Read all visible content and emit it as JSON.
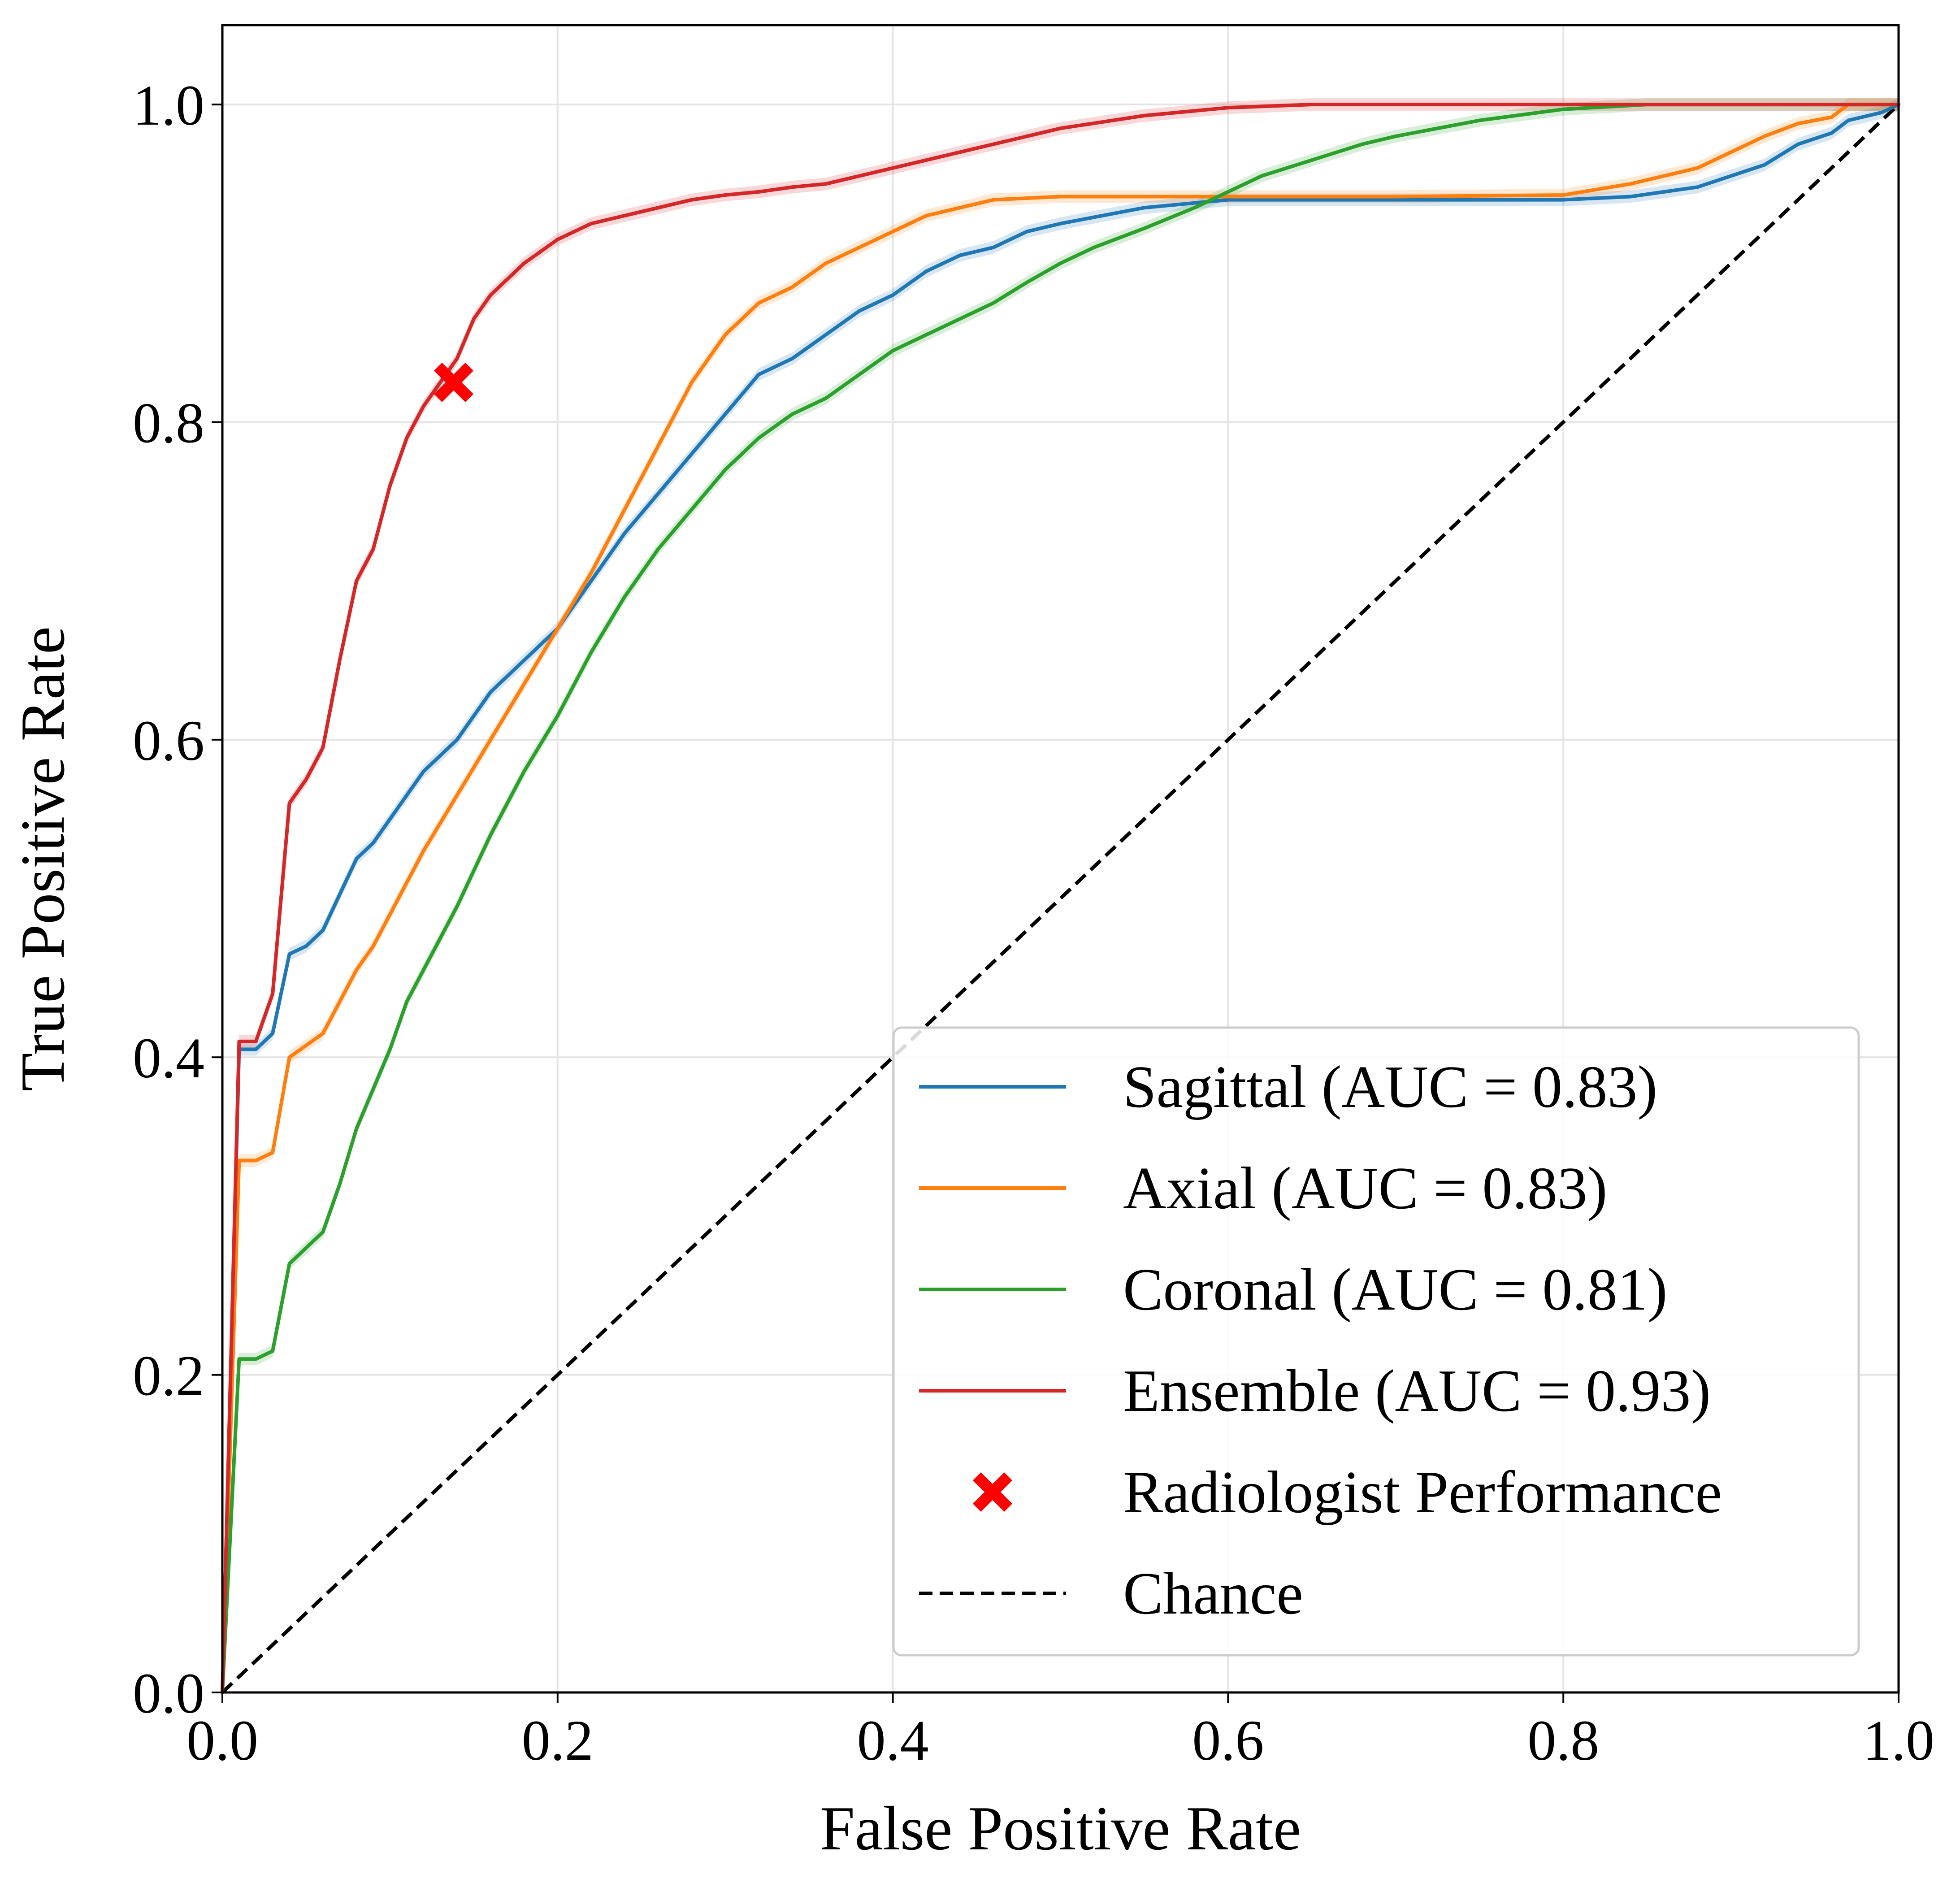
{
  "chart_data": {
    "type": "line",
    "title": "",
    "xlabel": "False Positive Rate",
    "ylabel": "True Positive Rate",
    "xlim": [
      0.0,
      1.0
    ],
    "ylim": [
      0.0,
      1.05
    ],
    "xticks": [
      0.0,
      0.2,
      0.4,
      0.6,
      0.8,
      1.0
    ],
    "yticks": [
      0.0,
      0.2,
      0.4,
      0.6,
      0.8,
      1.0
    ],
    "xtick_labels": [
      "0.0",
      "0.2",
      "0.4",
      "0.6",
      "0.8",
      "1.0"
    ],
    "ytick_labels": [
      "0.0",
      "0.2",
      "0.4",
      "0.6",
      "0.8",
      "1.0"
    ],
    "grid": true,
    "legend_position": "lower-right",
    "series": [
      {
        "name": "Sagittal",
        "label": "Sagittal (AUC = 0.83)",
        "color": "#1f77b4",
        "x": [
          0.0,
          0.01,
          0.02,
          0.03,
          0.04,
          0.05,
          0.06,
          0.08,
          0.09,
          0.1,
          0.12,
          0.14,
          0.16,
          0.18,
          0.2,
          0.22,
          0.24,
          0.26,
          0.28,
          0.3,
          0.32,
          0.34,
          0.36,
          0.38,
          0.4,
          0.42,
          0.44,
          0.46,
          0.48,
          0.5,
          0.55,
          0.6,
          0.7,
          0.8,
          0.84,
          0.88,
          0.9,
          0.92,
          0.94,
          0.96,
          0.97,
          0.99,
          1.0
        ],
        "y": [
          0.0,
          0.405,
          0.405,
          0.415,
          0.465,
          0.47,
          0.48,
          0.525,
          0.535,
          0.55,
          0.58,
          0.6,
          0.63,
          0.65,
          0.67,
          0.7,
          0.73,
          0.755,
          0.78,
          0.805,
          0.83,
          0.84,
          0.855,
          0.87,
          0.88,
          0.895,
          0.905,
          0.91,
          0.92,
          0.925,
          0.935,
          0.94,
          0.94,
          0.94,
          0.942,
          0.948,
          0.955,
          0.962,
          0.975,
          0.982,
          0.99,
          0.995,
          1.0
        ]
      },
      {
        "name": "Axial",
        "label": "Axial (AUC = 0.83)",
        "color": "#ff7f0e",
        "x": [
          0.0,
          0.01,
          0.02,
          0.03,
          0.04,
          0.06,
          0.08,
          0.09,
          0.1,
          0.12,
          0.14,
          0.16,
          0.18,
          0.2,
          0.22,
          0.24,
          0.26,
          0.28,
          0.3,
          0.32,
          0.34,
          0.36,
          0.38,
          0.4,
          0.42,
          0.44,
          0.46,
          0.5,
          0.6,
          0.7,
          0.8,
          0.84,
          0.88,
          0.9,
          0.92,
          0.94,
          0.96,
          0.97,
          1.0
        ],
        "y": [
          0.0,
          0.335,
          0.335,
          0.34,
          0.4,
          0.415,
          0.455,
          0.47,
          0.49,
          0.53,
          0.565,
          0.6,
          0.635,
          0.67,
          0.705,
          0.745,
          0.785,
          0.825,
          0.855,
          0.875,
          0.885,
          0.9,
          0.91,
          0.92,
          0.93,
          0.935,
          0.94,
          0.942,
          0.942,
          0.942,
          0.943,
          0.95,
          0.96,
          0.97,
          0.98,
          0.988,
          0.992,
          1.0,
          1.0
        ]
      },
      {
        "name": "Coronal",
        "label": "Coronal (AUC = 0.81)",
        "color": "#2ca02c",
        "x": [
          0.0,
          0.01,
          0.02,
          0.03,
          0.04,
          0.05,
          0.06,
          0.07,
          0.08,
          0.09,
          0.1,
          0.11,
          0.12,
          0.14,
          0.16,
          0.18,
          0.2,
          0.22,
          0.24,
          0.26,
          0.28,
          0.3,
          0.32,
          0.34,
          0.36,
          0.38,
          0.4,
          0.42,
          0.44,
          0.46,
          0.48,
          0.5,
          0.52,
          0.55,
          0.58,
          0.6,
          0.62,
          0.65,
          0.68,
          0.7,
          0.75,
          0.8,
          0.85,
          1.0
        ],
        "y": [
          0.0,
          0.21,
          0.21,
          0.215,
          0.27,
          0.28,
          0.29,
          0.32,
          0.355,
          0.38,
          0.405,
          0.435,
          0.455,
          0.495,
          0.54,
          0.58,
          0.615,
          0.655,
          0.69,
          0.72,
          0.745,
          0.77,
          0.79,
          0.805,
          0.815,
          0.83,
          0.845,
          0.855,
          0.865,
          0.875,
          0.888,
          0.9,
          0.91,
          0.922,
          0.935,
          0.945,
          0.955,
          0.965,
          0.975,
          0.98,
          0.99,
          0.997,
          1.0,
          1.0
        ]
      },
      {
        "name": "Ensemble",
        "label": "Ensemble (AUC = 0.93)",
        "color": "#d62728",
        "x": [
          0.0,
          0.01,
          0.02,
          0.03,
          0.04,
          0.05,
          0.06,
          0.07,
          0.08,
          0.09,
          0.1,
          0.11,
          0.12,
          0.13,
          0.14,
          0.15,
          0.16,
          0.18,
          0.2,
          0.22,
          0.24,
          0.26,
          0.28,
          0.3,
          0.32,
          0.34,
          0.36,
          0.38,
          0.4,
          0.42,
          0.44,
          0.46,
          0.48,
          0.5,
          0.55,
          0.6,
          0.65,
          0.7,
          1.0
        ],
        "y": [
          0.0,
          0.41,
          0.41,
          0.44,
          0.56,
          0.575,
          0.595,
          0.65,
          0.7,
          0.72,
          0.76,
          0.79,
          0.81,
          0.825,
          0.84,
          0.865,
          0.88,
          0.9,
          0.915,
          0.925,
          0.93,
          0.935,
          0.94,
          0.943,
          0.945,
          0.948,
          0.95,
          0.955,
          0.96,
          0.965,
          0.97,
          0.975,
          0.98,
          0.985,
          0.993,
          0.998,
          1.0,
          1.0,
          1.0
        ]
      }
    ],
    "markers": [
      {
        "name": "Radiologist Performance",
        "label": "Radiologist Performance",
        "x": 0.138,
        "y": 0.825,
        "color": "#ff0000",
        "symbol": "X"
      }
    ],
    "reference_line": {
      "name": "Chance",
      "label": "Chance",
      "x": [
        0.0,
        1.0
      ],
      "y": [
        0.0,
        1.0
      ],
      "color": "#000000",
      "style": "dashed"
    }
  }
}
